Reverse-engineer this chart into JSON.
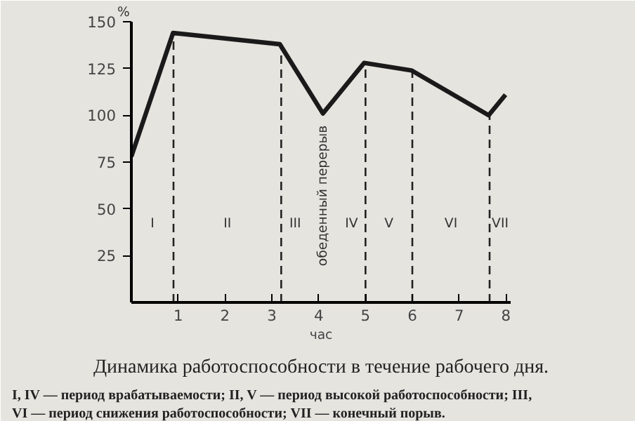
{
  "chart_data": {
    "type": "line",
    "title": "Динамика работоспособности в течение рабочего дня.",
    "xlabel": "час",
    "ylabel": "%",
    "series": [
      {
        "color": "#1a1a1a",
        "x": [
          0,
          0.89,
          3.17,
          4.09,
          4.97,
          5.98,
          7.63,
          7.99
        ],
        "values": [
          78,
          144,
          138,
          101,
          128,
          124,
          100,
          111
        ]
      }
    ],
    "xlim": [
      0,
      8.1
    ],
    "ylim": [
      0,
      150
    ],
    "xticks": [
      1,
      2,
      3,
      4,
      5,
      6,
      7,
      8
    ],
    "yticks": [
      25,
      50,
      75,
      100,
      125,
      150
    ],
    "grid": false,
    "line_style": "solid",
    "ref_lines": [
      {
        "axis": "x",
        "value": 0.9,
        "line_style": "dashed"
      },
      {
        "axis": "x",
        "value": 3.2,
        "line_style": "dashed"
      },
      {
        "axis": "x",
        "value": 5,
        "line_style": "dashed"
      },
      {
        "axis": "x",
        "value": 6,
        "line_style": "dashed"
      },
      {
        "axis": "x",
        "value": 7.65,
        "line_style": "dashed"
      }
    ],
    "annotations": [
      "I",
      "II",
      "III",
      "обеденный перерыв",
      "IV",
      "V",
      "VI",
      "VII",
      "I, IV — период врабатываемости; II, V — период высокой работоспособности; III,\nVI — период снижения работоспособности; VII — конечный порыв."
    ]
  }
}
